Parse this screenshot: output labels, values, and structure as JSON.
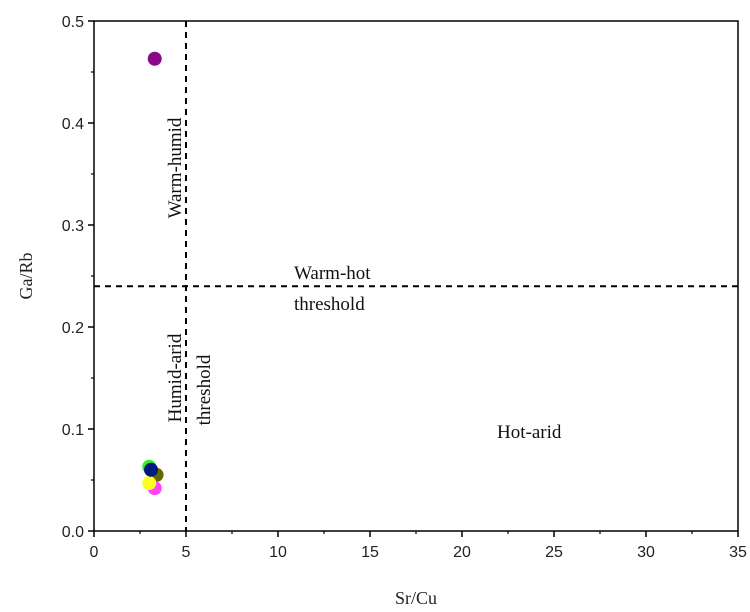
{
  "chart_data": {
    "type": "scatter",
    "xlabel": "Sr/Cu",
    "ylabel": "Ga/Rb",
    "xlim": [
      0,
      35
    ],
    "ylim": [
      0,
      0.5
    ],
    "x_ticks": [
      "0",
      "5",
      "10",
      "15",
      "20",
      "25",
      "30",
      "35"
    ],
    "y_ticks": [
      "0.0",
      "0.1",
      "0.2",
      "0.3",
      "0.4",
      "0.5"
    ],
    "grid": false,
    "thresholds": [
      {
        "orientation": "vertical",
        "value": 5
      },
      {
        "orientation": "horizontal",
        "value": 0.24
      }
    ],
    "annotations": [
      {
        "text": "Warm-humid"
      },
      {
        "text": "Warm-hot"
      },
      {
        "text": "threshold"
      },
      {
        "text": "Humid-arid"
      },
      {
        "text": "threshold"
      },
      {
        "text": "Hot-arid"
      }
    ],
    "points": [
      {
        "x": 3.3,
        "y": 0.463,
        "color": "#8b0a8b"
      },
      {
        "x": 3.0,
        "y": 0.063,
        "color": "#33ee33"
      },
      {
        "x": 3.4,
        "y": 0.055,
        "color": "#666600"
      },
      {
        "x": 3.3,
        "y": 0.042,
        "color": "#ff44ff"
      },
      {
        "x": 3.0,
        "y": 0.047,
        "color": "#ffff22"
      },
      {
        "x": 3.1,
        "y": 0.06,
        "color": "#001a80"
      }
    ]
  }
}
